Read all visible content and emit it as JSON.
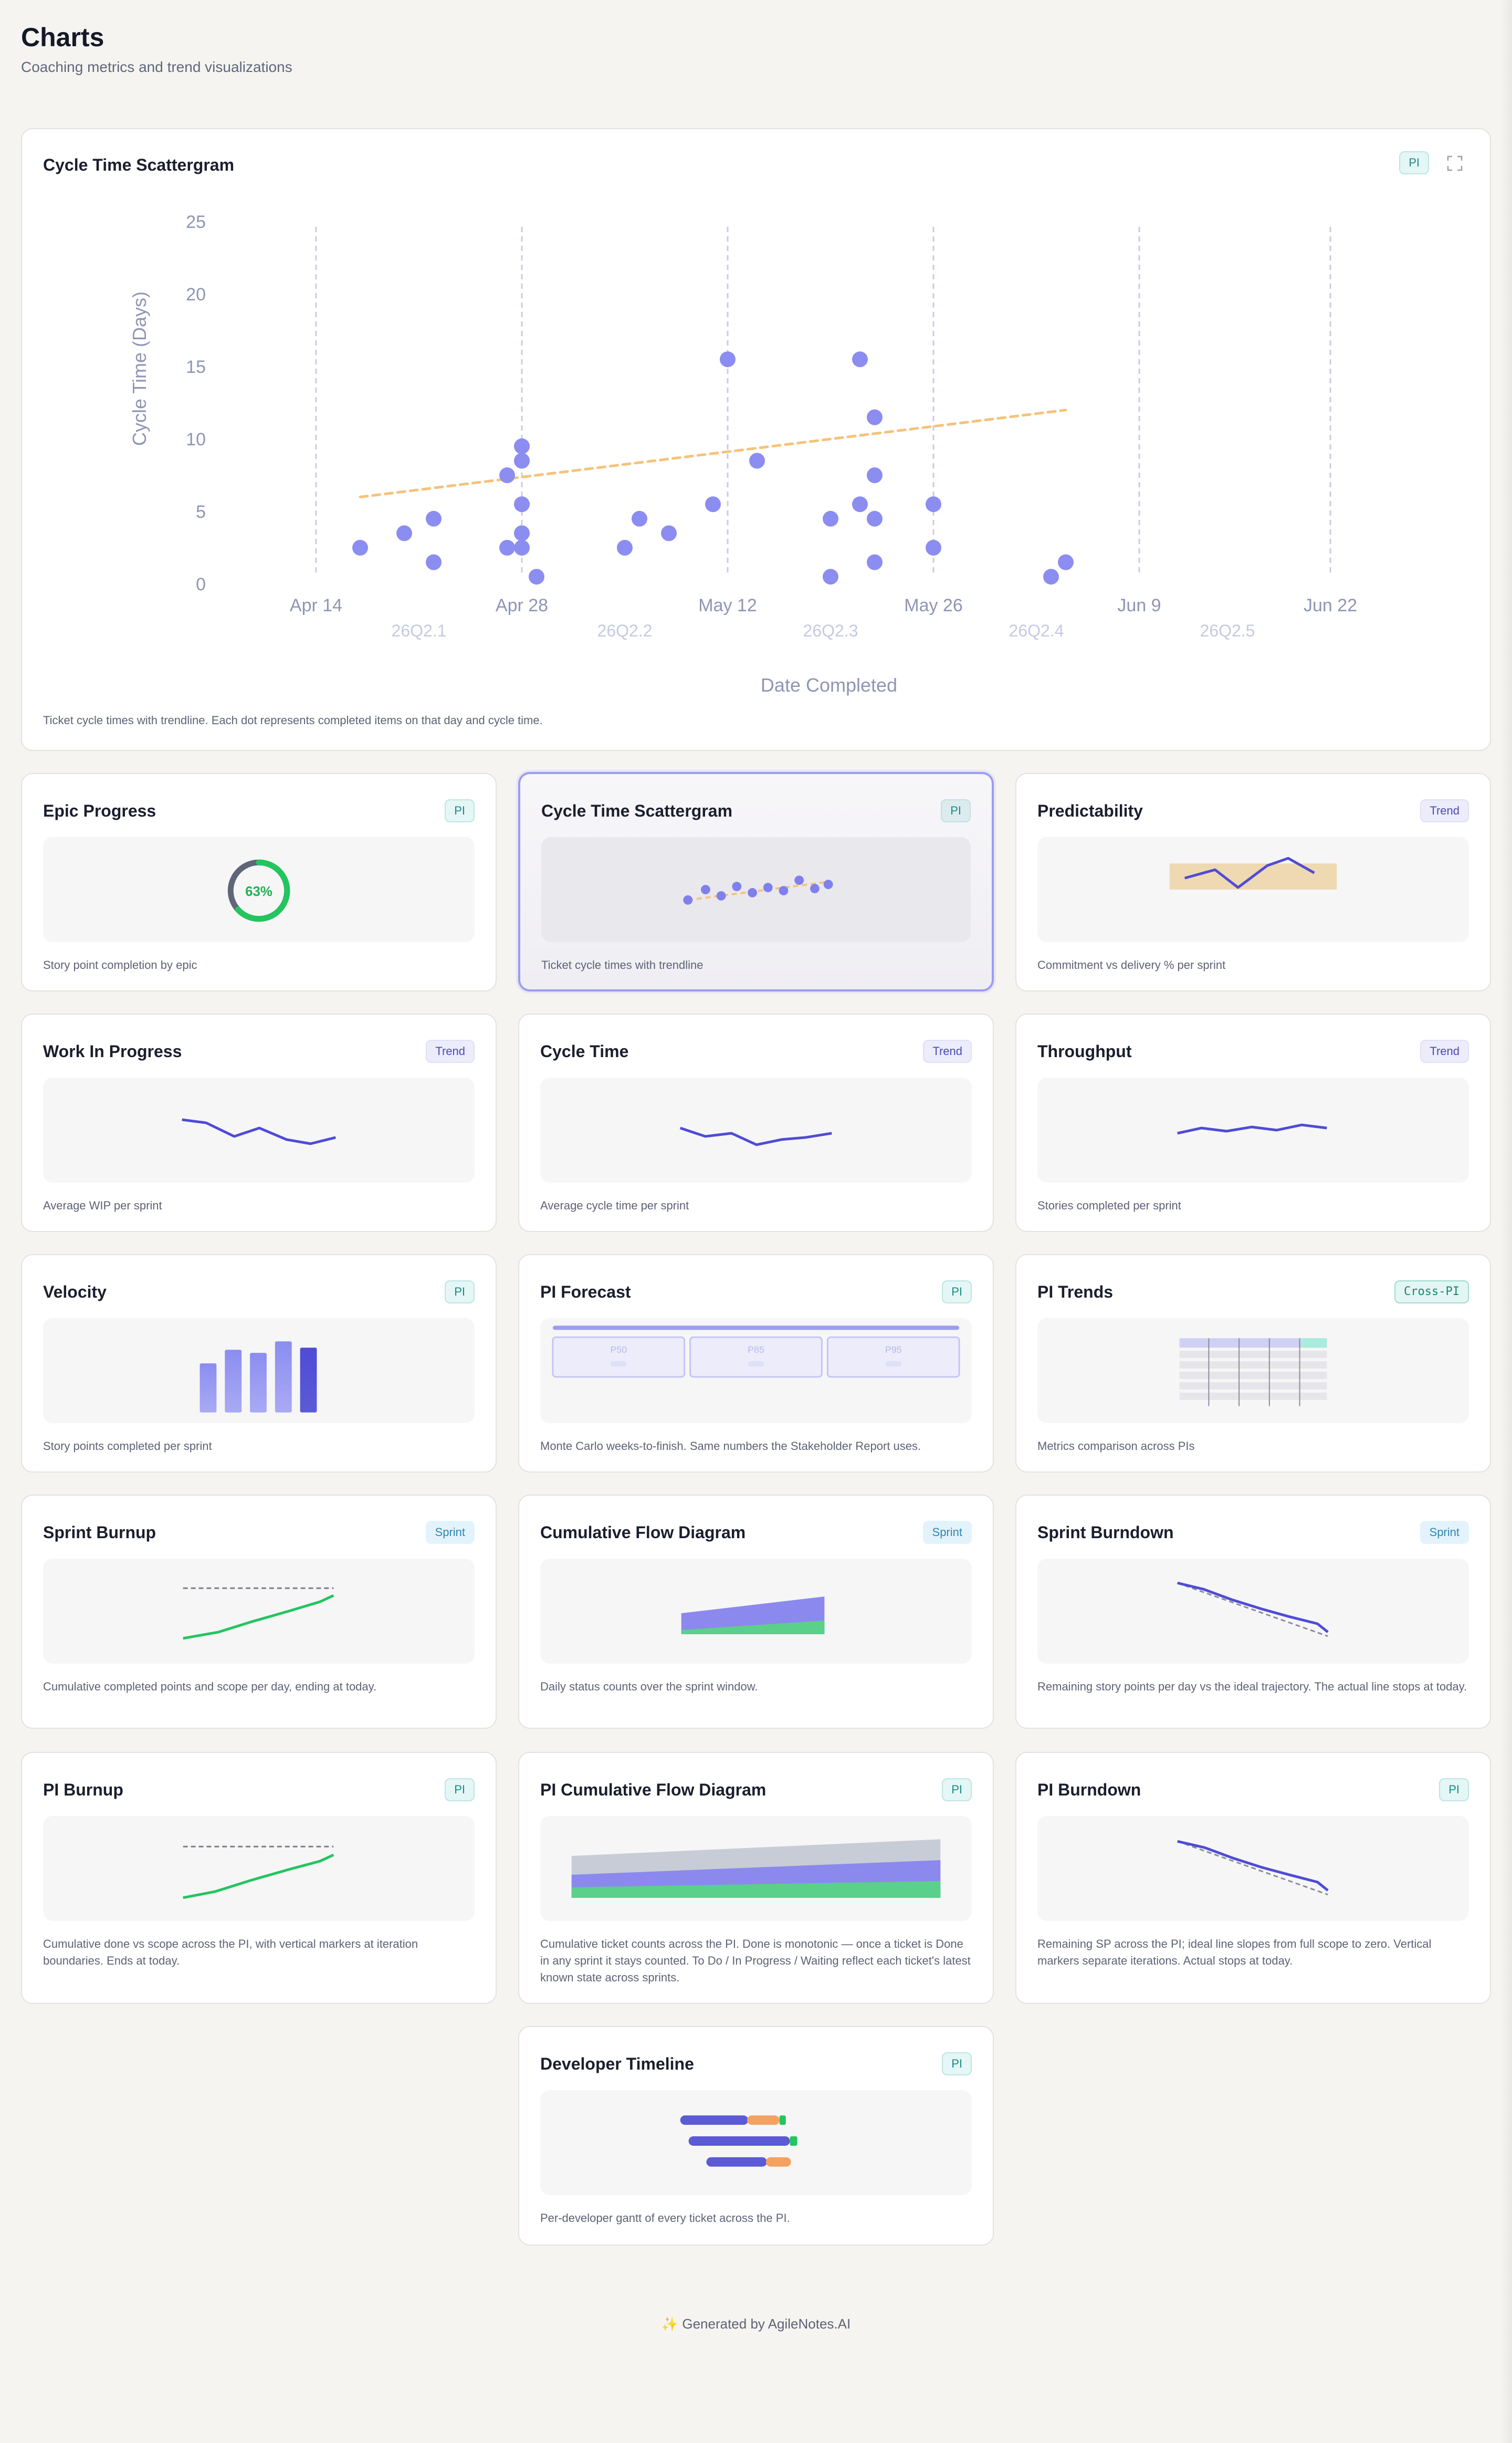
{
  "header": {
    "title": "Charts",
    "subtitle": "Coaching metrics and trend visualizations"
  },
  "main_chart": {
    "title": "Cycle Time Scattergram",
    "badge": "PI",
    "description": "Ticket cycle times with trendline. Each dot represents completed items on that day and cycle time.",
    "expand_icon": "expand-icon"
  },
  "cards": [
    {
      "title": "Epic Progress",
      "badge": "PI",
      "desc": "Story point completion by epic",
      "gauge_label": "63%"
    },
    {
      "title": "Cycle Time Scattergram",
      "badge": "PI",
      "desc": "Ticket cycle times with trendline"
    },
    {
      "title": "Predictability",
      "badge": "Trend",
      "desc": "Commitment vs delivery % per sprint"
    },
    {
      "title": "Work In Progress",
      "badge": "Trend",
      "desc": "Average WIP per sprint"
    },
    {
      "title": "Cycle Time",
      "badge": "Trend",
      "desc": "Average cycle time per sprint"
    },
    {
      "title": "Throughput",
      "badge": "Trend",
      "desc": "Stories completed per sprint"
    },
    {
      "title": "Velocity",
      "badge": "PI",
      "desc": "Story points completed per sprint"
    },
    {
      "title": "PI Forecast",
      "badge": "PI",
      "desc": "Monte Carlo weeks-to-finish. Same numbers the Stakeholder Report uses.",
      "forecast_labels": [
        "P50",
        "P85",
        "P95"
      ]
    },
    {
      "title": "PI Trends",
      "badge": "Cross-PI",
      "desc": "Metrics comparison across PIs"
    },
    {
      "title": "Sprint Burnup",
      "badge": "Sprint",
      "desc": "Cumulative completed points and scope per day, ending at today."
    },
    {
      "title": "Cumulative Flow Diagram",
      "badge": "Sprint",
      "desc": "Daily status counts over the sprint window."
    },
    {
      "title": "Sprint Burndown",
      "badge": "Sprint",
      "desc": "Remaining story points per day vs the ideal trajectory. The actual line stops at today."
    },
    {
      "title": "PI Burnup",
      "badge": "PI",
      "desc": "Cumulative done vs scope across the PI, with vertical markers at iteration boundaries. Ends at today."
    },
    {
      "title": "PI Cumulative Flow Diagram",
      "badge": "PI",
      "desc": "Cumulative ticket counts across the PI. Done is monotonic — once a ticket is Done in any sprint it stays counted. To Do / In Progress / Waiting reflect each ticket's latest known state across sprints."
    },
    {
      "title": "PI Burndown",
      "badge": "PI",
      "desc": "Remaining SP across the PI; ideal line slopes from full scope to zero. Vertical markers separate iterations. Actual stops at today."
    },
    {
      "title": "Developer Timeline",
      "badge": "PI",
      "desc": "Per-developer gantt of every ticket across the PI."
    }
  ],
  "footer": {
    "spark": "✨",
    "text": "Generated by AgileNotes.AI"
  },
  "colors": {
    "accent": "#5b5bd6",
    "dot": "#8b8df0",
    "trendline": "#f5c27a",
    "green": "#22c55e",
    "orange": "#f4a261",
    "axis_text": "#8f95b4",
    "iteration_text": "#c5c9e2"
  },
  "chart_data": {
    "type": "scatter",
    "title": "Cycle Time Scattergram",
    "xlabel": "Date Completed",
    "ylabel": "Cycle Time (Days)",
    "ylim": [
      0,
      25
    ],
    "yticks": [
      0,
      5,
      10,
      15,
      20,
      25
    ],
    "xticks": [
      "Apr 14",
      "Apr 28",
      "May 12",
      "May 26",
      "Jun 9",
      "Jun 22"
    ],
    "xtick_dates": [
      "2026-04-14",
      "2026-04-28",
      "2026-05-12",
      "2026-05-26",
      "2026-06-09",
      "2026-06-22"
    ],
    "iterations": [
      {
        "label": "26Q2.1",
        "center": "2026-04-21"
      },
      {
        "label": "26Q2.2",
        "center": "2026-05-05"
      },
      {
        "label": "26Q2.3",
        "center": "2026-05-19"
      },
      {
        "label": "26Q2.4",
        "center": "2026-06-02"
      },
      {
        "label": "26Q2.5",
        "center": "2026-06-15"
      }
    ],
    "points": [
      {
        "x": "2026-04-17",
        "y": 2.5
      },
      {
        "x": "2026-04-20",
        "y": 3.5
      },
      {
        "x": "2026-04-22",
        "y": 4.5
      },
      {
        "x": "2026-04-22",
        "y": 1.5
      },
      {
        "x": "2026-04-27",
        "y": 7.5
      },
      {
        "x": "2026-04-27",
        "y": 2.5
      },
      {
        "x": "2026-04-28",
        "y": 9.5
      },
      {
        "x": "2026-04-28",
        "y": 8.5
      },
      {
        "x": "2026-04-28",
        "y": 5.5
      },
      {
        "x": "2026-04-28",
        "y": 3.5
      },
      {
        "x": "2026-04-28",
        "y": 2.5
      },
      {
        "x": "2026-04-29",
        "y": 0.5
      },
      {
        "x": "2026-05-05",
        "y": 2.5
      },
      {
        "x": "2026-05-06",
        "y": 4.5
      },
      {
        "x": "2026-05-08",
        "y": 3.5
      },
      {
        "x": "2026-05-11",
        "y": 5.5
      },
      {
        "x": "2026-05-12",
        "y": 15.5
      },
      {
        "x": "2026-05-14",
        "y": 8.5
      },
      {
        "x": "2026-05-19",
        "y": 4.5
      },
      {
        "x": "2026-05-19",
        "y": 0.5
      },
      {
        "x": "2026-05-21",
        "y": 15.5
      },
      {
        "x": "2026-05-21",
        "y": 5.5
      },
      {
        "x": "2026-05-22",
        "y": 11.5
      },
      {
        "x": "2026-05-22",
        "y": 7.5
      },
      {
        "x": "2026-05-22",
        "y": 4.5
      },
      {
        "x": "2026-05-22",
        "y": 1.5
      },
      {
        "x": "2026-05-26",
        "y": 5.5
      },
      {
        "x": "2026-05-26",
        "y": 2.5
      },
      {
        "x": "2026-06-03",
        "y": 0.5
      },
      {
        "x": "2026-06-04",
        "y": 1.5
      }
    ],
    "trendline": [
      {
        "x": "2026-04-17",
        "y": 6.0
      },
      {
        "x": "2026-06-04",
        "y": 12.0
      }
    ]
  }
}
